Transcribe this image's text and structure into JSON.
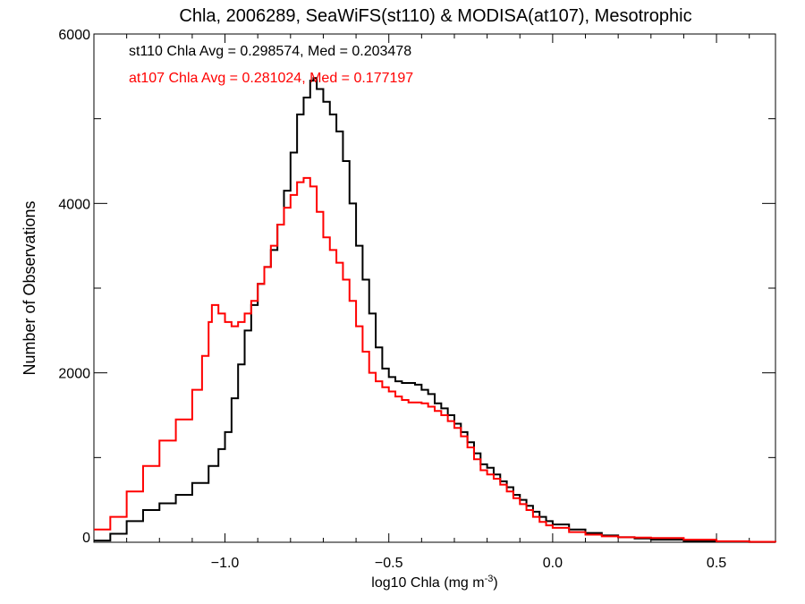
{
  "chart_data": {
    "type": "line",
    "step": true,
    "title": "Chla, 2006289, SeaWiFS(st110) & MODISA(at107), Mesotrophic",
    "xlabel_main": "log10 Chla (mg m",
    "xlabel_sup": "-3",
    "xlabel_close": ")",
    "ylabel": "Number of Observations",
    "xlim": [
      -1.4,
      0.68
    ],
    "ylim": [
      0,
      6000
    ],
    "xticks": [
      -1.0,
      -0.5,
      0.0,
      0.5
    ],
    "xtick_labels": [
      "−1.0",
      "−0.5",
      "0.0",
      "0.5"
    ],
    "yticks": [
      0,
      2000,
      4000,
      6000
    ],
    "ytick_labels": [
      "0",
      "2000",
      "4000",
      "6000"
    ],
    "annotations": [
      {
        "text": "st110 Chla Avg = 0.298574, Med = 0.203478",
        "color": "#000000"
      },
      {
        "text": "at107 Chla Avg = 0.281024, Med = 0.177197",
        "color": "#ff0000"
      }
    ],
    "series": [
      {
        "color": "#000000",
        "points": [
          [
            -1.4,
            20
          ],
          [
            -1.35,
            100
          ],
          [
            -1.3,
            250
          ],
          [
            -1.25,
            380
          ],
          [
            -1.2,
            460
          ],
          [
            -1.15,
            560
          ],
          [
            -1.1,
            700
          ],
          [
            -1.05,
            900
          ],
          [
            -1.02,
            1100
          ],
          [
            -1.0,
            1300
          ],
          [
            -0.98,
            1700
          ],
          [
            -0.96,
            2100
          ],
          [
            -0.94,
            2500
          ],
          [
            -0.92,
            2800
          ],
          [
            -0.9,
            3050
          ],
          [
            -0.88,
            3250
          ],
          [
            -0.86,
            3450
          ],
          [
            -0.84,
            3750
          ],
          [
            -0.82,
            4150
          ],
          [
            -0.8,
            4600
          ],
          [
            -0.78,
            5050
          ],
          [
            -0.76,
            5250
          ],
          [
            -0.74,
            5450
          ],
          [
            -0.73,
            5480
          ],
          [
            -0.72,
            5350
          ],
          [
            -0.7,
            5200
          ],
          [
            -0.68,
            5050
          ],
          [
            -0.66,
            4850
          ],
          [
            -0.64,
            4500
          ],
          [
            -0.62,
            4000
          ],
          [
            -0.6,
            3500
          ],
          [
            -0.58,
            3100
          ],
          [
            -0.56,
            2700
          ],
          [
            -0.54,
            2300
          ],
          [
            -0.52,
            2050
          ],
          [
            -0.5,
            1950
          ],
          [
            -0.48,
            1900
          ],
          [
            -0.46,
            1880
          ],
          [
            -0.44,
            1880
          ],
          [
            -0.42,
            1860
          ],
          [
            -0.4,
            1800
          ],
          [
            -0.38,
            1750
          ],
          [
            -0.36,
            1640
          ],
          [
            -0.34,
            1580
          ],
          [
            -0.32,
            1500
          ],
          [
            -0.3,
            1400
          ],
          [
            -0.28,
            1300
          ],
          [
            -0.26,
            1180
          ],
          [
            -0.24,
            1050
          ],
          [
            -0.22,
            920
          ],
          [
            -0.2,
            880
          ],
          [
            -0.18,
            800
          ],
          [
            -0.16,
            720
          ],
          [
            -0.14,
            650
          ],
          [
            -0.12,
            560
          ],
          [
            -0.1,
            500
          ],
          [
            -0.08,
            430
          ],
          [
            -0.06,
            360
          ],
          [
            -0.04,
            300
          ],
          [
            -0.02,
            250
          ],
          [
            0.0,
            210
          ],
          [
            0.05,
            150
          ],
          [
            0.1,
            110
          ],
          [
            0.15,
            80
          ],
          [
            0.2,
            60
          ],
          [
            0.25,
            45
          ],
          [
            0.3,
            30
          ],
          [
            0.4,
            15
          ],
          [
            0.5,
            5
          ],
          [
            0.6,
            2
          ],
          [
            0.68,
            0
          ]
        ]
      },
      {
        "color": "#ff0000",
        "points": [
          [
            -1.4,
            150
          ],
          [
            -1.35,
            300
          ],
          [
            -1.3,
            600
          ],
          [
            -1.25,
            900
          ],
          [
            -1.2,
            1200
          ],
          [
            -1.15,
            1450
          ],
          [
            -1.1,
            1800
          ],
          [
            -1.07,
            2200
          ],
          [
            -1.05,
            2600
          ],
          [
            -1.04,
            2800
          ],
          [
            -1.02,
            2700
          ],
          [
            -1.0,
            2600
          ],
          [
            -0.98,
            2550
          ],
          [
            -0.96,
            2600
          ],
          [
            -0.94,
            2700
          ],
          [
            -0.92,
            2850
          ],
          [
            -0.9,
            3050
          ],
          [
            -0.88,
            3250
          ],
          [
            -0.86,
            3500
          ],
          [
            -0.84,
            3750
          ],
          [
            -0.82,
            3950
          ],
          [
            -0.8,
            4100
          ],
          [
            -0.78,
            4250
          ],
          [
            -0.76,
            4300
          ],
          [
            -0.74,
            4200
          ],
          [
            -0.72,
            3900
          ],
          [
            -0.7,
            3600
          ],
          [
            -0.68,
            3450
          ],
          [
            -0.66,
            3300
          ],
          [
            -0.64,
            3100
          ],
          [
            -0.62,
            2850
          ],
          [
            -0.6,
            2550
          ],
          [
            -0.58,
            2250
          ],
          [
            -0.56,
            2000
          ],
          [
            -0.54,
            1900
          ],
          [
            -0.52,
            1830
          ],
          [
            -0.5,
            1780
          ],
          [
            -0.48,
            1720
          ],
          [
            -0.46,
            1680
          ],
          [
            -0.44,
            1650
          ],
          [
            -0.42,
            1650
          ],
          [
            -0.4,
            1640
          ],
          [
            -0.38,
            1600
          ],
          [
            -0.36,
            1550
          ],
          [
            -0.34,
            1500
          ],
          [
            -0.32,
            1430
          ],
          [
            -0.3,
            1350
          ],
          [
            -0.28,
            1250
          ],
          [
            -0.26,
            1120
          ],
          [
            -0.24,
            980
          ],
          [
            -0.22,
            850
          ],
          [
            -0.2,
            800
          ],
          [
            -0.18,
            750
          ],
          [
            -0.16,
            680
          ],
          [
            -0.14,
            600
          ],
          [
            -0.12,
            520
          ],
          [
            -0.1,
            450
          ],
          [
            -0.08,
            380
          ],
          [
            -0.06,
            300
          ],
          [
            -0.04,
            240
          ],
          [
            -0.02,
            200
          ],
          [
            0.0,
            170
          ],
          [
            0.05,
            120
          ],
          [
            0.1,
            90
          ],
          [
            0.15,
            70
          ],
          [
            0.2,
            60
          ],
          [
            0.25,
            55
          ],
          [
            0.3,
            50
          ],
          [
            0.4,
            30
          ],
          [
            0.5,
            12
          ],
          [
            0.6,
            5
          ],
          [
            0.68,
            0
          ]
        ]
      }
    ]
  }
}
